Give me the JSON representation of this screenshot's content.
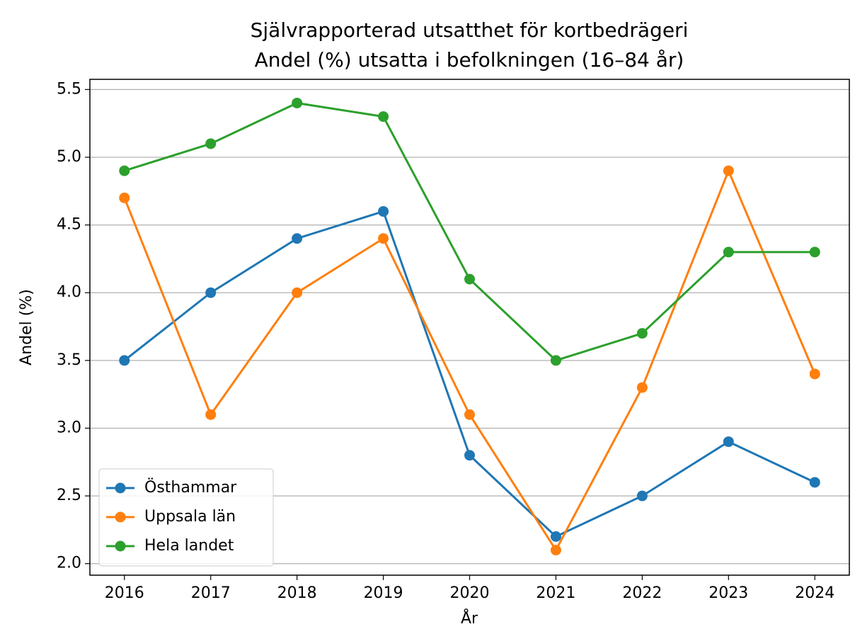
{
  "chart_data": {
    "type": "line",
    "title": "Självrapporterad utsatthet för kortbedrägeri",
    "subtitle": "Andel (%) utsatta i befolkningen (16–84 år)",
    "xlabel": "År",
    "ylabel": "Andel (%)",
    "x": [
      2016,
      2017,
      2018,
      2019,
      2020,
      2021,
      2022,
      2023,
      2024
    ],
    "series": [
      {
        "name": "Östhammar",
        "color": "#1f77b4",
        "values": [
          3.5,
          4.0,
          4.4,
          4.6,
          2.8,
          2.2,
          2.5,
          2.9,
          2.6
        ]
      },
      {
        "name": "Uppsala län",
        "color": "#ff7f0e",
        "values": [
          4.7,
          3.1,
          4.0,
          4.4,
          3.1,
          2.1,
          3.3,
          4.9,
          3.4
        ]
      },
      {
        "name": "Hela landet",
        "color": "#2ca02c",
        "values": [
          4.9,
          5.1,
          5.4,
          5.3,
          4.1,
          3.5,
          3.7,
          4.3,
          4.3
        ]
      }
    ],
    "xlim": [
      2015.6,
      2024.4
    ],
    "xticks": [
      2016,
      2017,
      2018,
      2019,
      2020,
      2021,
      2022,
      2023,
      2024
    ],
    "ylim": [
      1.915,
      5.575
    ],
    "yticks": [
      {
        "value": 2,
        "label": "2.0"
      },
      2.5,
      {
        "value": 3,
        "label": "3.0"
      },
      3.5,
      {
        "value": 4,
        "label": "4.0"
      },
      4.5,
      {
        "value": 5,
        "label": "5.0"
      },
      5.5
    ],
    "grid": true,
    "grid_axis": "y",
    "legend": "lower left"
  }
}
